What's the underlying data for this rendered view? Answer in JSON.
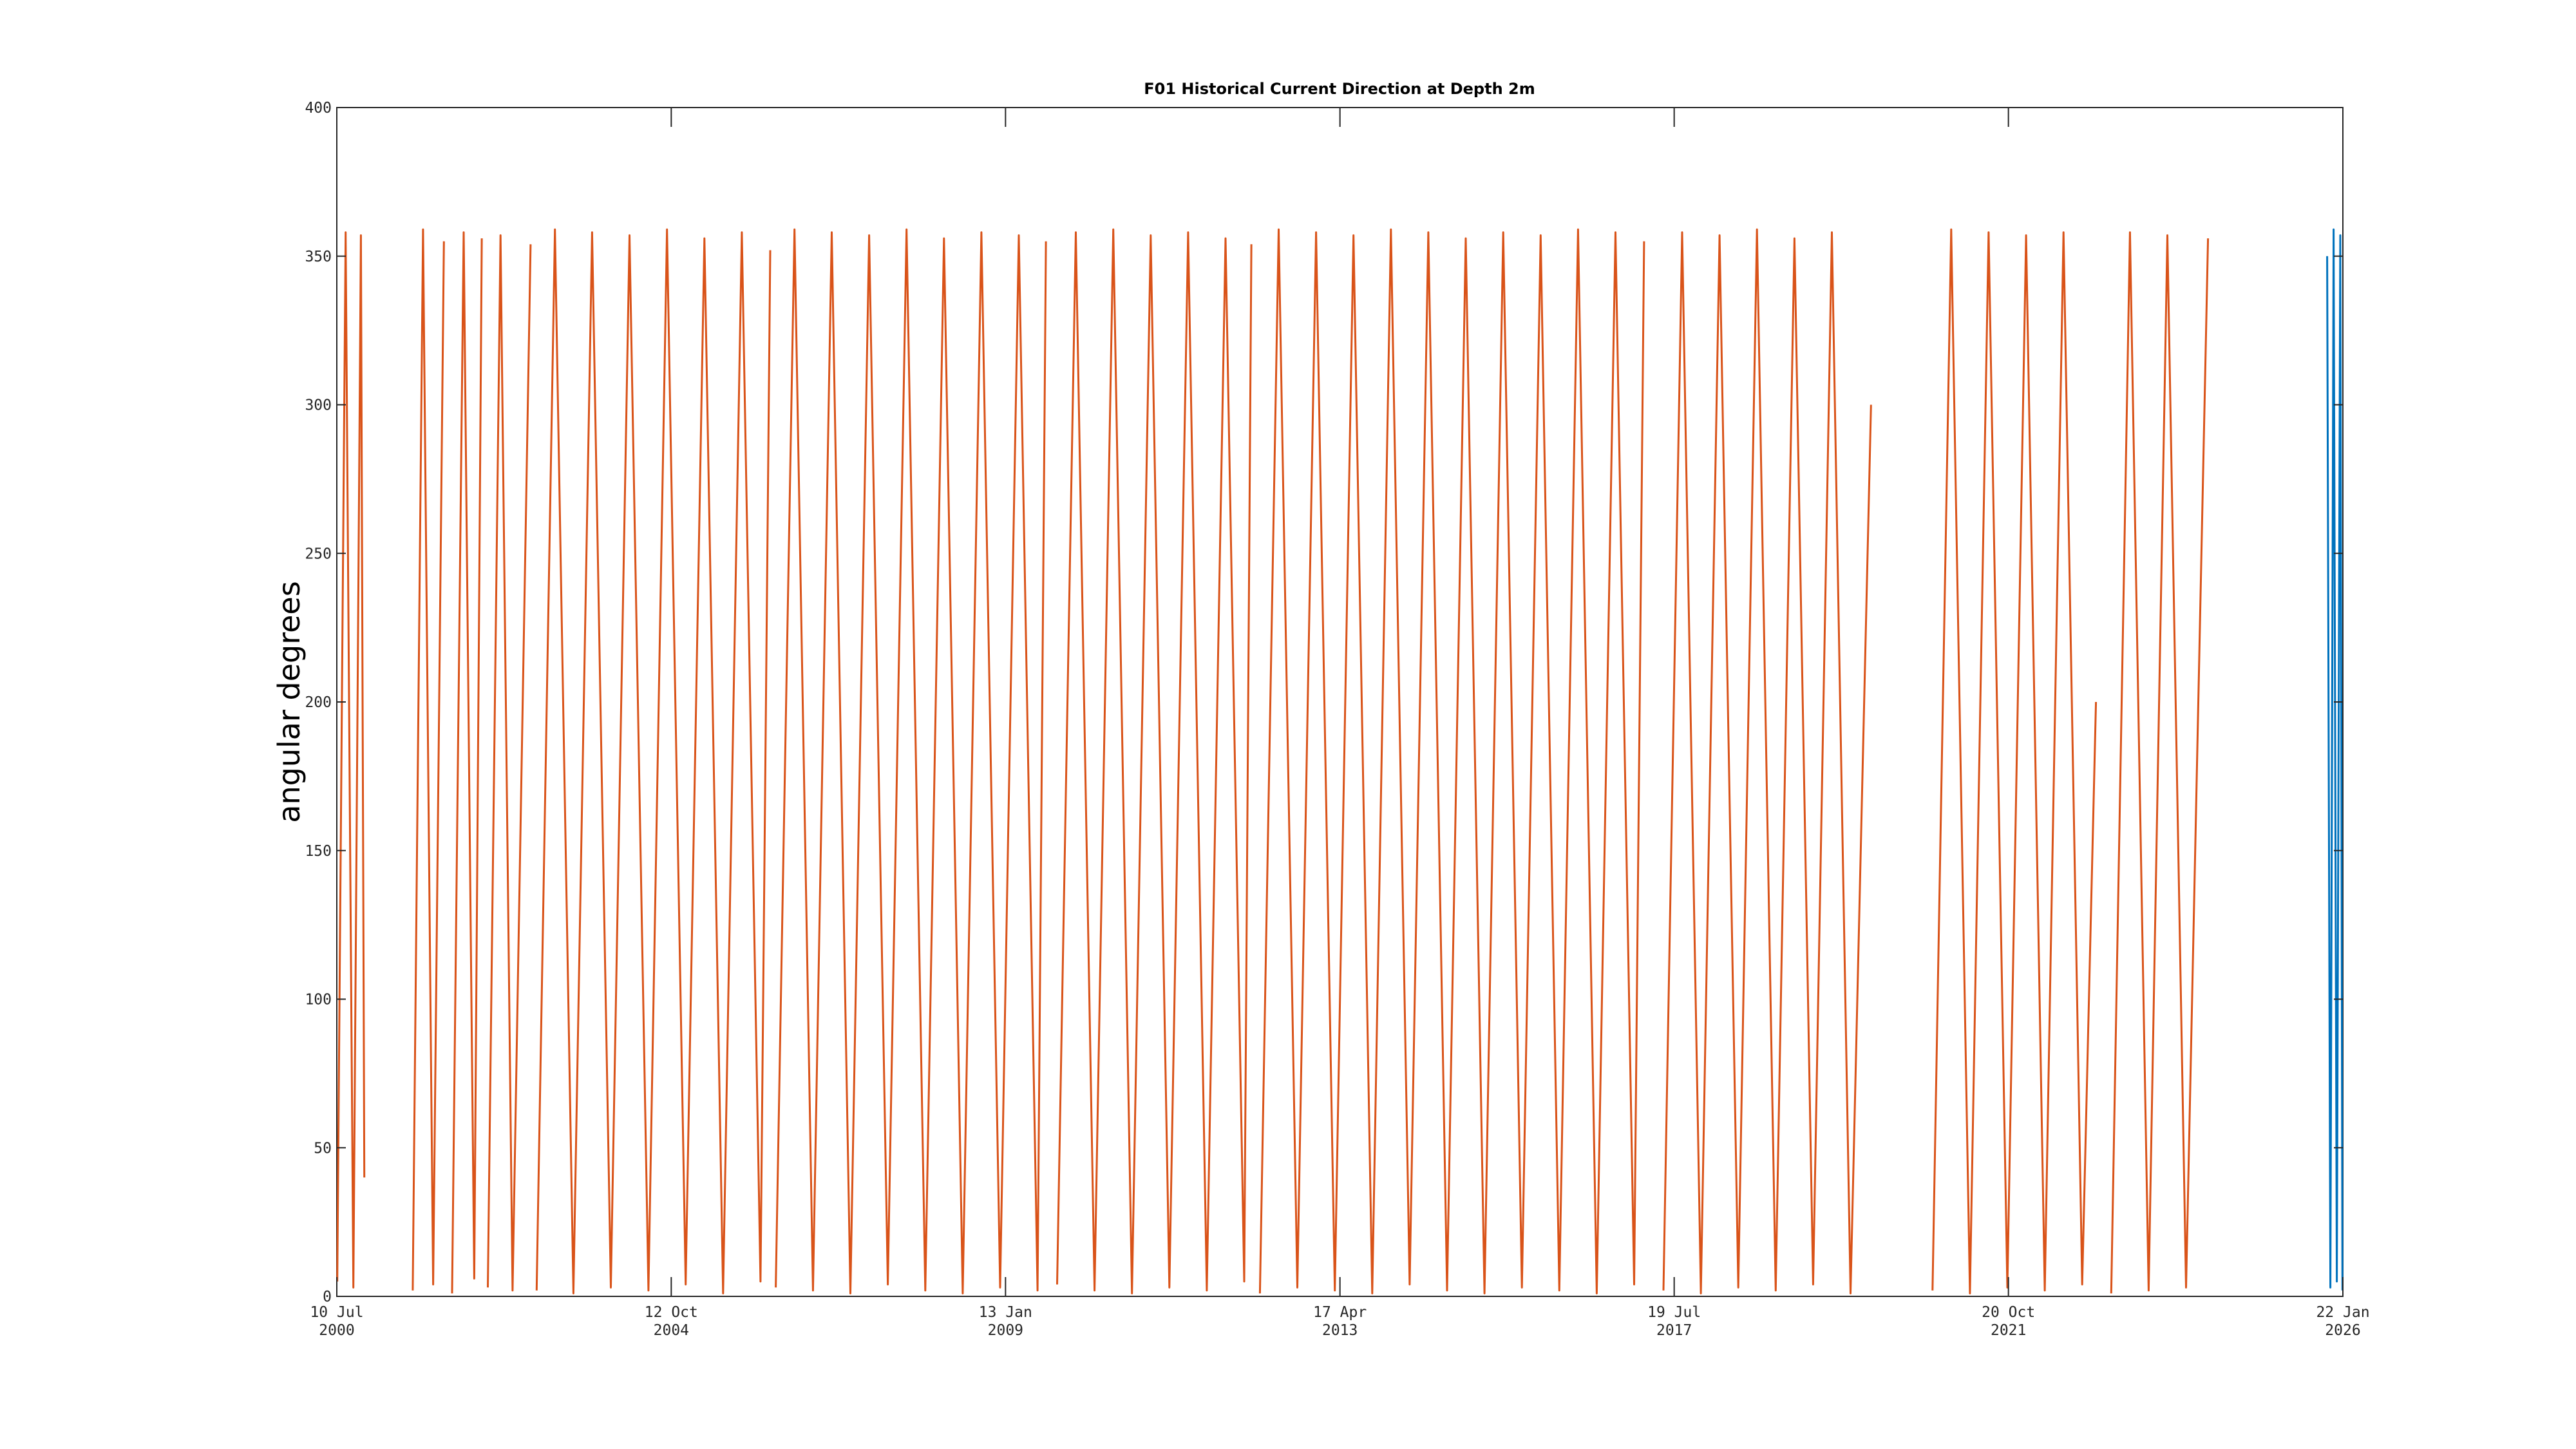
{
  "chart_data": {
    "type": "line",
    "title": "F01 Historical Current Direction at Depth 2m",
    "y_label": "angular degrees",
    "xlim": [
      "2000-07-10",
      "2026-01-22"
    ],
    "xticks": [
      {
        "value": "2000-07-10",
        "label": "10 Jul 2000"
      },
      {
        "value": "2004-10-12",
        "label": "12 Oct 2004"
      },
      {
        "value": "2009-01-13",
        "label": "13 Jan 2009"
      },
      {
        "value": "2013-04-17",
        "label": "17 Apr 2013"
      },
      {
        "value": "2017-07-19",
        "label": "19 Jul 2017"
      },
      {
        "value": "2021-10-20",
        "label": "20 Oct 2021"
      },
      {
        "value": "2026-01-22",
        "label": "22 Jan 2026"
      }
    ],
    "ylim": [
      0,
      400
    ],
    "yticks": [
      0,
      50,
      100,
      150,
      200,
      250,
      300,
      350,
      400
    ],
    "grid": false,
    "series": [
      {
        "color": "#d95319",
        "x": [
          "2000-07-12",
          "2000-08-20",
          "2000-09-25",
          "2000-10-30",
          "2000-11-15",
          "2001-03-01",
          "2001-06-28",
          "2001-08-15",
          "2001-10-01",
          "2001-11-20",
          "2001-12-10",
          "2001-12-28",
          "2002-02-20",
          "2002-04-10",
          "2002-05-15",
          "2002-05-25",
          "2002-06-12",
          "2002-08-10",
          "2002-10-05",
          "2002-12-28",
          "2003-01-10",
          "2003-01-25",
          "2003-04-20",
          "2003-07-15",
          "2003-10-10",
          "2004-01-05",
          "2004-04-01",
          "2004-06-28",
          "2004-09-22",
          "2004-12-18",
          "2005-03-15",
          "2005-06-10",
          "2005-09-05",
          "2005-12-01",
          "2006-01-15",
          "2006-01-30",
          "2006-02-10",
          "2006-05-08",
          "2006-08-02",
          "2006-10-28",
          "2007-01-23",
          "2007-04-20",
          "2007-07-16",
          "2007-10-11",
          "2008-01-06",
          "2008-04-02",
          "2008-06-28",
          "2008-09-23",
          "2008-12-19",
          "2009-03-16",
          "2009-06-11",
          "2009-07-20",
          "2009-08-10",
          "2009-09-10",
          "2009-12-06",
          "2010-03-03",
          "2010-05-29",
          "2010-08-24",
          "2010-11-19",
          "2011-02-14",
          "2011-05-12",
          "2011-08-07",
          "2011-11-02",
          "2012-01-28",
          "2012-03-01",
          "2012-03-20",
          "2012-04-10",
          "2012-07-06",
          "2012-10-01",
          "2012-12-27",
          "2013-03-24",
          "2013-06-19",
          "2013-09-14",
          "2013-12-10",
          "2014-03-07",
          "2014-06-02",
          "2014-08-28",
          "2014-11-23",
          "2015-02-18",
          "2015-05-16",
          "2015-08-11",
          "2015-11-06",
          "2016-02-01",
          "2016-04-28",
          "2016-07-24",
          "2016-10-19",
          "2017-01-14",
          "2017-03-01",
          "2017-04-10",
          "2017-05-30",
          "2017-08-25",
          "2017-11-20",
          "2018-02-15",
          "2018-05-13",
          "2018-08-08",
          "2018-11-03",
          "2019-01-29",
          "2019-04-26",
          "2019-07-22",
          "2019-10-17",
          "2020-01-20",
          "2020-06-01",
          "2020-11-01",
          "2021-01-27",
          "2021-04-24",
          "2021-07-20",
          "2021-10-15",
          "2022-01-10",
          "2022-04-07",
          "2022-07-03",
          "2022-09-28",
          "2022-12-01",
          "2022-12-20",
          "2023-02-10",
          "2023-05-08",
          "2023-08-03",
          "2023-10-29",
          "2024-01-24",
          "2024-05-05"
        ],
        "values": [
          5,
          358,
          3,
          357,
          40,
          null,
          2,
          359,
          4,
          355,
          null,
          1,
          358,
          6,
          356,
          null,
          3,
          357,
          2,
          354,
          null,
          2,
          359,
          1,
          358,
          3,
          357,
          2,
          359,
          4,
          356,
          1,
          358,
          5,
          352,
          null,
          3,
          359,
          2,
          358,
          1,
          357,
          4,
          359,
          2,
          356,
          1,
          358,
          3,
          357,
          2,
          355,
          null,
          4,
          358,
          2,
          359,
          1,
          357,
          3,
          358,
          2,
          356,
          5,
          354,
          null,
          1,
          359,
          3,
          358,
          2,
          357,
          1,
          359,
          4,
          358,
          2,
          356,
          1,
          358,
          3,
          357,
          2,
          359,
          1,
          358,
          4,
          355,
          null,
          2,
          358,
          1,
          357,
          3,
          359,
          2,
          356,
          4,
          358,
          1,
          300,
          null,
          2,
          359,
          1,
          358,
          3,
          357,
          2,
          358,
          4,
          200,
          null,
          1,
          358,
          2,
          357,
          3,
          356
        ]
      },
      {
        "color": "#0072bd",
        "x": [
          "2025-11-10",
          "2025-11-25",
          "2025-12-10",
          "2025-12-25",
          "2026-01-10",
          "2026-01-20"
        ],
        "values": [
          350,
          3,
          359,
          5,
          357,
          2
        ]
      }
    ]
  }
}
